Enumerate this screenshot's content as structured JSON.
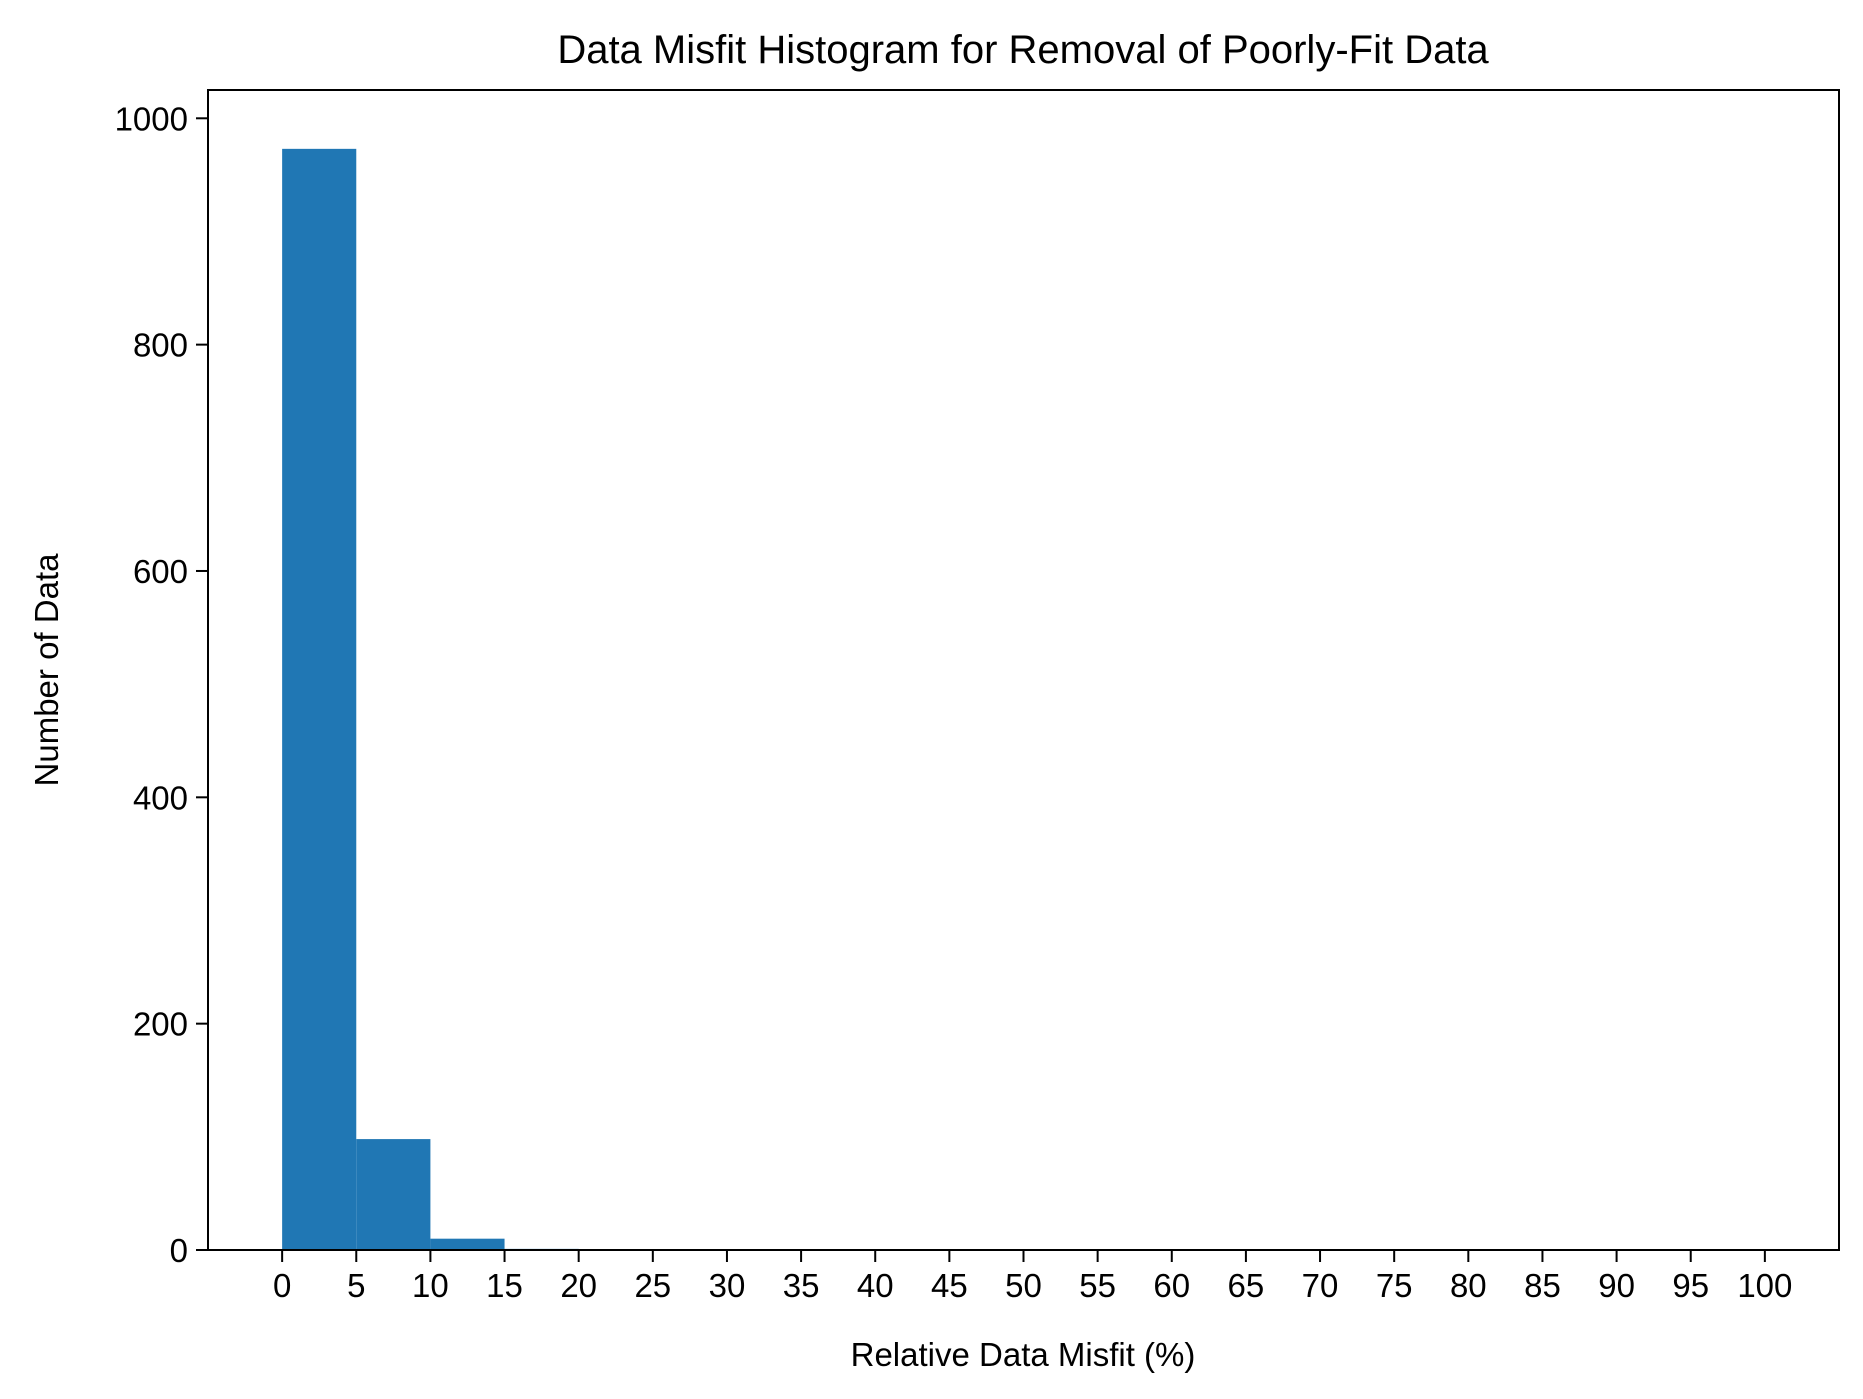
{
  "chart_data": {
    "type": "bar",
    "title": "Data Misfit Histogram for Removal of Poorly-Fit Data",
    "xlabel": "Relative Data Misfit (%)",
    "ylabel": "Number of Data",
    "xlim": [
      -5,
      105
    ],
    "ylim": [
      0,
      1025
    ],
    "x_ticks": [
      "0",
      "5",
      "10",
      "15",
      "20",
      "25",
      "30",
      "35",
      "40",
      "45",
      "50",
      "55",
      "60",
      "65",
      "70",
      "75",
      "80",
      "85",
      "90",
      "95",
      "100"
    ],
    "y_ticks": [
      "0",
      "200",
      "400",
      "600",
      "800",
      "1000"
    ],
    "bins": [
      {
        "start": 0,
        "end": 5,
        "count": 973
      },
      {
        "start": 5,
        "end": 10,
        "count": 98
      },
      {
        "start": 10,
        "end": 15,
        "count": 10
      },
      {
        "start": 15,
        "end": 20,
        "count": 1
      },
      {
        "start": 20,
        "end": 25,
        "count": 0
      },
      {
        "start": 25,
        "end": 30,
        "count": 0
      },
      {
        "start": 30,
        "end": 35,
        "count": 0
      },
      {
        "start": 35,
        "end": 40,
        "count": 0
      },
      {
        "start": 40,
        "end": 45,
        "count": 0
      },
      {
        "start": 45,
        "end": 50,
        "count": 0
      },
      {
        "start": 50,
        "end": 55,
        "count": 0
      },
      {
        "start": 55,
        "end": 60,
        "count": 0
      },
      {
        "start": 60,
        "end": 65,
        "count": 0
      },
      {
        "start": 65,
        "end": 70,
        "count": 0
      },
      {
        "start": 70,
        "end": 75,
        "count": 0
      },
      {
        "start": 75,
        "end": 80,
        "count": 0
      },
      {
        "start": 80,
        "end": 85,
        "count": 0
      },
      {
        "start": 85,
        "end": 90,
        "count": 0
      },
      {
        "start": 90,
        "end": 95,
        "count": 0
      },
      {
        "start": 95,
        "end": 100,
        "count": 0
      }
    ],
    "bar_color": "#2077b4",
    "grid": false,
    "legend": "none"
  }
}
